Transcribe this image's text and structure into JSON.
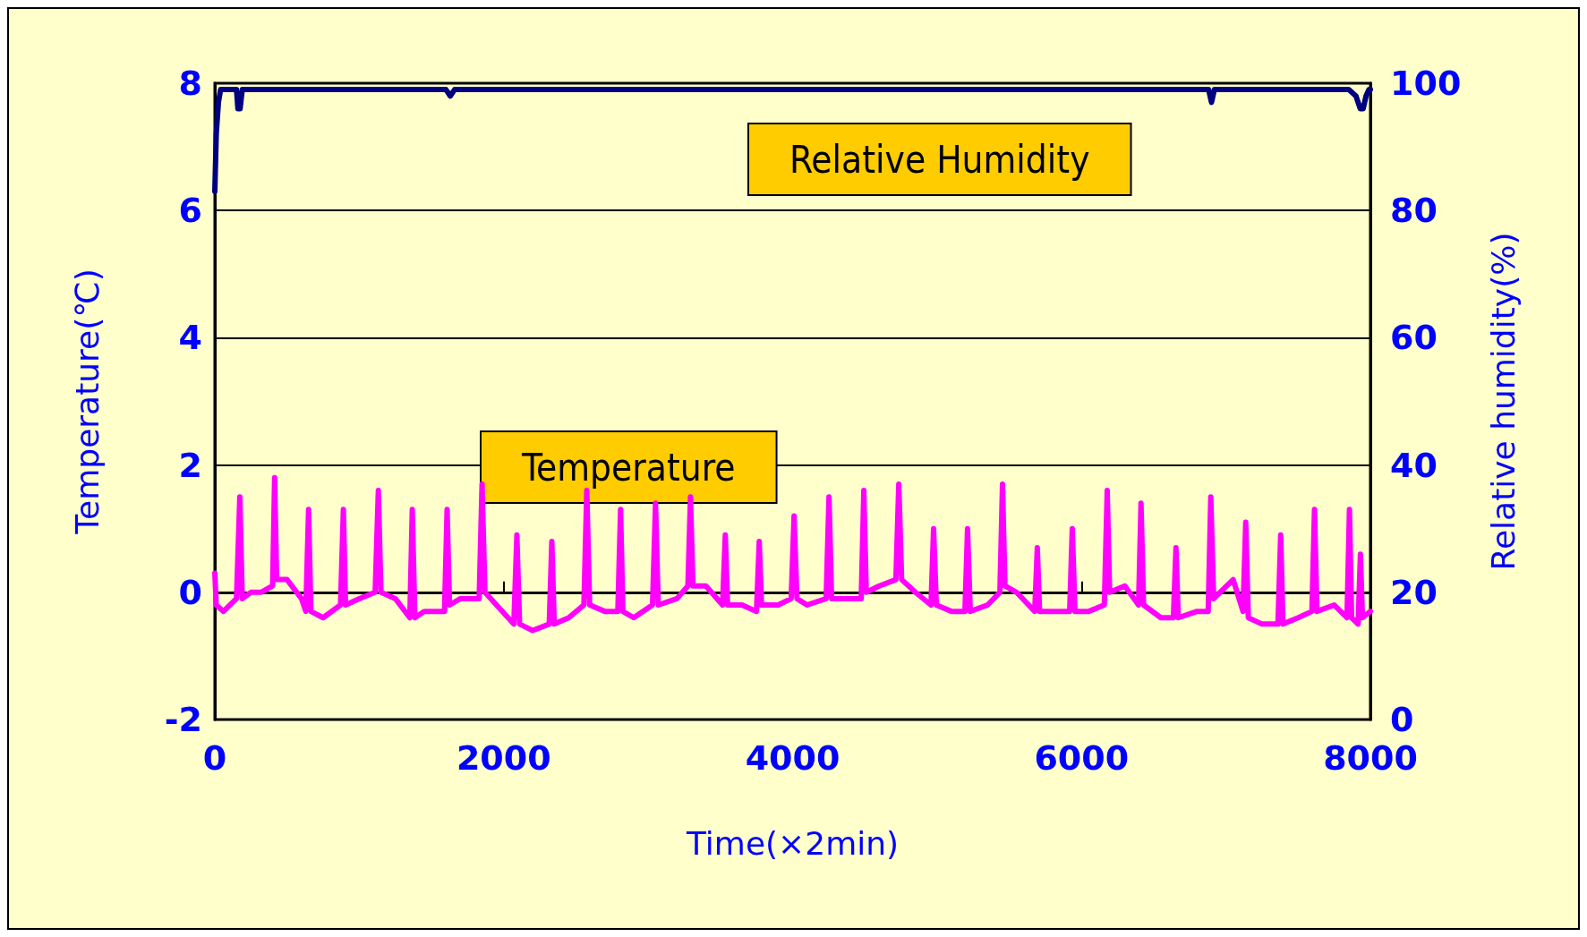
{
  "chart_data": {
    "type": "line",
    "xlabel": "Time(×2min)",
    "ylabel": "Temperature(℃)",
    "y2label": "Relative humidity(%)",
    "xlim": [
      0,
      8000
    ],
    "xticks": [
      0,
      2000,
      4000,
      6000,
      8000
    ],
    "ylim": [
      -2,
      8
    ],
    "yticks": [
      -2,
      0,
      2,
      4,
      6,
      8
    ],
    "y2lim": [
      0,
      100
    ],
    "y2ticks": [
      0,
      20,
      40,
      60,
      80,
      100
    ],
    "grid": "y",
    "legend": false,
    "marker": "none",
    "line_style": "solid",
    "series": [
      {
        "name": "Relative Humidity",
        "color": "#000080",
        "axis": "y2",
        "x": [
          0,
          10,
          25,
          40,
          80,
          150,
          160,
          175,
          190,
          300,
          1600,
          1630,
          1660,
          3000,
          5000,
          6880,
          6900,
          6920,
          7850,
          7900,
          7930,
          7950,
          7970,
          7990,
          8000
        ],
        "values": [
          83,
          92,
          97,
          99,
          99,
          99,
          96,
          96,
          99,
          99,
          99,
          98,
          99,
          99,
          99,
          99,
          97,
          99,
          99,
          98,
          96,
          96,
          98,
          99,
          99
        ]
      },
      {
        "name": "Temperature",
        "color": "#ff00ff",
        "x": [
          0,
          10,
          60,
          150,
          173,
          190,
          250,
          320,
          400,
          414,
          428,
          500,
          600,
          630,
          649,
          665,
          750,
          870,
          890,
          905,
          1000,
          1110,
          1132,
          1150,
          1250,
          1350,
          1367,
          1385,
          1450,
          1590,
          1608,
          1625,
          1700,
          1830,
          1850,
          1870,
          1950,
          2070,
          2091,
          2110,
          2200,
          2315,
          2333,
          2350,
          2450,
          2555,
          2575,
          2595,
          2700,
          2790,
          2809,
          2825,
          2900,
          3030,
          3051,
          3070,
          3200,
          3275,
          3293,
          3310,
          3400,
          3515,
          3534,
          3550,
          3650,
          3750,
          3769,
          3785,
          3900,
          3990,
          4010,
          4030,
          4100,
          4232,
          4252,
          4270,
          4400,
          4475,
          4493,
          4510,
          4600,
          4715,
          4735,
          4755,
          4850,
          4958,
          4976,
          4995,
          5100,
          5193,
          5211,
          5230,
          5350,
          5435,
          5453,
          5470,
          5550,
          5676,
          5694,
          5710,
          5800,
          5918,
          5936,
          5955,
          6050,
          6158,
          6178,
          6195,
          6300,
          6395,
          6412,
          6430,
          6550,
          6636,
          6654,
          6670,
          6800,
          6877,
          6895,
          6915,
          7050,
          7118,
          7137,
          7155,
          7250,
          7360,
          7379,
          7395,
          7500,
          7595,
          7613,
          7630,
          7750,
          7838,
          7855,
          7870,
          7915,
          7931,
          7945,
          8000
        ],
        "values": [
          0.3,
          -0.2,
          -0.3,
          -0.1,
          1.5,
          -0.1,
          0,
          0,
          0.1,
          1.8,
          0.2,
          0.2,
          -0.1,
          -0.3,
          1.3,
          -0.3,
          -0.4,
          -0.2,
          1.3,
          -0.2,
          -0.1,
          0,
          1.6,
          0,
          -0.1,
          -0.4,
          1.3,
          -0.4,
          -0.3,
          -0.3,
          1.3,
          -0.2,
          -0.1,
          -0.1,
          1.7,
          0,
          -0.2,
          -0.5,
          0.9,
          -0.5,
          -0.6,
          -0.5,
          0.8,
          -0.5,
          -0.4,
          -0.2,
          1.6,
          -0.2,
          -0.3,
          -0.3,
          1.3,
          -0.3,
          -0.4,
          -0.2,
          1.4,
          -0.2,
          -0.1,
          0.1,
          1.5,
          0.1,
          0.1,
          -0.2,
          0.9,
          -0.2,
          -0.2,
          -0.3,
          0.8,
          -0.2,
          -0.2,
          -0.1,
          1.2,
          -0.1,
          -0.2,
          -0.1,
          1.5,
          -0.1,
          -0.1,
          -0.1,
          1.6,
          0,
          0.1,
          0.2,
          1.7,
          0.2,
          0,
          -0.2,
          1.0,
          -0.2,
          -0.3,
          -0.3,
          1.0,
          -0.3,
          -0.2,
          0,
          1.7,
          0.1,
          0,
          -0.3,
          0.7,
          -0.3,
          -0.3,
          -0.3,
          1.0,
          -0.3,
          -0.3,
          -0.2,
          1.6,
          0,
          0.1,
          -0.2,
          1.4,
          -0.2,
          -0.4,
          -0.4,
          0.7,
          -0.4,
          -0.3,
          -0.3,
          1.5,
          -0.1,
          0.2,
          -0.3,
          1.1,
          -0.4,
          -0.5,
          -0.5,
          0.9,
          -0.5,
          -0.4,
          -0.3,
          1.3,
          -0.3,
          -0.2,
          -0.4,
          1.3,
          -0.4,
          -0.5,
          0.6,
          -0.4,
          -0.3
        ]
      }
    ]
  }
}
